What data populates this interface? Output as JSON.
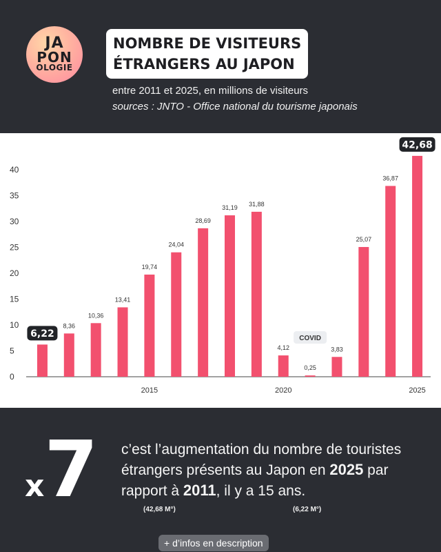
{
  "logo": {
    "line1": "JA",
    "line2": "PON",
    "line3": "OLOGIE"
  },
  "title": {
    "line1": "NOMBRE DE VISITEURS",
    "line2": "ÉTRANGERS AU JAPON"
  },
  "subtitle": "entre 2011 et 2025, en millions de visiteurs",
  "sources": "sources : JNTO - Office national du tourisme japonais",
  "chart_data": {
    "type": "bar",
    "categories": [
      "2011",
      "2012",
      "2013",
      "2014",
      "2015",
      "2016",
      "2017",
      "2018",
      "2019",
      "2020",
      "2021",
      "2022",
      "2023",
      "2024",
      "2025"
    ],
    "values": [
      6.22,
      8.36,
      10.36,
      13.41,
      19.74,
      24.04,
      28.69,
      31.19,
      31.88,
      4.12,
      0.25,
      3.83,
      25.07,
      36.87,
      42.68
    ],
    "value_labels": [
      "6,22",
      "8,36",
      "10,36",
      "13,41",
      "19,74",
      "24,04",
      "28,69",
      "31,19",
      "31,88",
      "4,12",
      "0,25",
      "3,83",
      "25,07",
      "36,87",
      "42,68"
    ],
    "highlighted_labels": [
      "6,22",
      "42,68"
    ],
    "x_tick_labels": [
      "2015",
      "2020",
      "2025"
    ],
    "y_ticks": [
      0,
      5,
      10,
      15,
      20,
      25,
      30,
      35,
      40
    ],
    "ylim": [
      0,
      40
    ],
    "annotation": "COVID",
    "bar_color": "#f2506e",
    "grid": false
  },
  "stat": {
    "big_prefix": "x",
    "big_number": "7",
    "part1": "c’est l’augmentation du nombre de touristes étrangers présents au Japon en ",
    "year1": "2025",
    "part2": " par rapport à ",
    "year2": "2011",
    "part3": ", il y a 15 ans.",
    "note1": "(42,68 M°)",
    "note2": "(6,22 M°)"
  },
  "footer": {
    "info_label": "+ d’infos en description"
  }
}
